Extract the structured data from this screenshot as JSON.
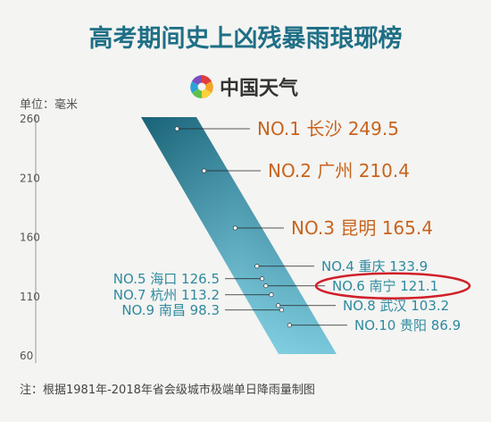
{
  "title": "高考期间史上凶残暴雨琅琊榜",
  "brand": {
    "name": "中国天气",
    "logo_icon": "pinwheel-logo-icon"
  },
  "note": "注：根据1981年-2018年省会级城市极端单日降雨量制图",
  "colors": {
    "title": "#1f6f86",
    "label_high": "#c8641e",
    "label_low": "#2f8aa0",
    "band_dark": "#1c6f86",
    "band_light": "#7fd2e6",
    "highlight": "#d0202a",
    "axis": "#555555",
    "guide": "#222222"
  },
  "chart_data": {
    "type": "bar",
    "ylabel": "单位：毫米",
    "ylim": [
      60,
      260
    ],
    "yticks": [
      260,
      210,
      160,
      110,
      60
    ],
    "grid": false,
    "highlight_rank": "NO.6",
    "series": [
      {
        "rank": "NO.1",
        "city": "长沙",
        "value": 249.5,
        "display": "249.5"
      },
      {
        "rank": "NO.2",
        "city": "广州",
        "value": 210.4,
        "display": "210.4"
      },
      {
        "rank": "NO.3",
        "city": "昆明",
        "value": 165.4,
        "display": "165.4"
      },
      {
        "rank": "NO.4",
        "city": "重庆",
        "value": 133.9,
        "display": "133.9"
      },
      {
        "rank": "NO.5",
        "city": "海口",
        "value": 126.5,
        "display": "126.5"
      },
      {
        "rank": "NO.6",
        "city": "南宁",
        "value": 121.1,
        "display": "121.1"
      },
      {
        "rank": "NO.7",
        "city": "杭州",
        "value": 113.2,
        "display": "113.2"
      },
      {
        "rank": "NO.8",
        "city": "武汉",
        "value": 103.2,
        "display": "103.2"
      },
      {
        "rank": "NO.9",
        "city": "南昌",
        "value": 98.3,
        "display": "98.3"
      },
      {
        "rank": "NO.10",
        "city": "贵阳",
        "value": 86.9,
        "display": "86.9"
      }
    ]
  }
}
